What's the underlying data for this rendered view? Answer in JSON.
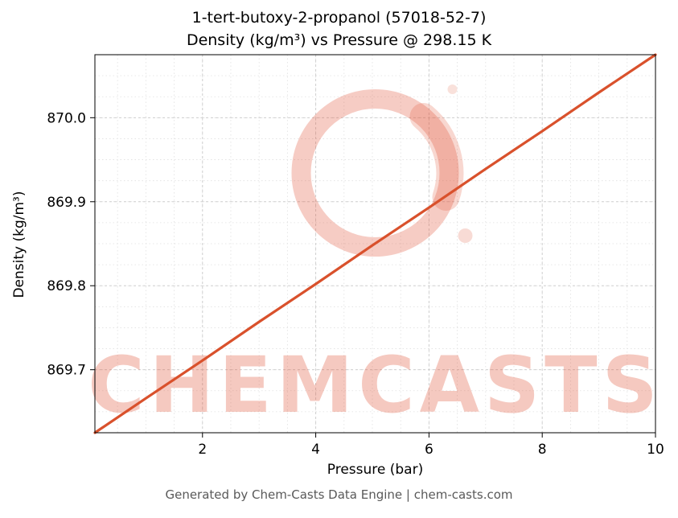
{
  "header": {
    "title_line1": "1-tert-butoxy-2-propanol (57018-52-7)",
    "title_line2": "Density (kg/m³) vs Pressure @ 298.15 K"
  },
  "footer": {
    "text": "Generated by Chem-Casts Data Engine | chem-casts.com"
  },
  "watermark": {
    "text": "CHEMCASTS",
    "color": "#e0563a",
    "text_opacity": 0.32,
    "ring_opacity": 0.3
  },
  "chart_data": {
    "type": "line",
    "title": "1-tert-butoxy-2-propanol (57018-52-7)\nDensity (kg/m³) vs Pressure @ 298.15 K",
    "xlabel": "Pressure (bar)",
    "ylabel": "Density (kg/m³)",
    "xlim": [
      0.1,
      10
    ],
    "ylim": [
      869.625,
      870.075
    ],
    "grid": true,
    "legend": "none",
    "xticks": [
      {
        "v": 2,
        "label": "2"
      },
      {
        "v": 4,
        "label": "4"
      },
      {
        "v": 6,
        "label": "6"
      },
      {
        "v": 8,
        "label": "8"
      },
      {
        "v": 10,
        "label": "10"
      }
    ],
    "yticks": [
      {
        "v": 869.7,
        "label": "869.7"
      },
      {
        "v": 869.8,
        "label": "869.8"
      },
      {
        "v": 869.9,
        "label": "869.9"
      },
      {
        "v": 870.0,
        "label": "870.0"
      }
    ],
    "minor_x_step": 0.5,
    "minor_y_step": 0.025,
    "line_color": "#d9512c",
    "series": [
      {
        "name": "Density vs Pressure @ 298.15 K",
        "x": [
          0.1,
          1,
          2,
          3,
          4,
          5,
          6,
          7,
          8,
          9,
          10
        ],
        "y": [
          869.625,
          869.666,
          869.711,
          869.757,
          869.802,
          869.848,
          869.893,
          869.939,
          869.984,
          870.03,
          870.075
        ]
      }
    ]
  }
}
